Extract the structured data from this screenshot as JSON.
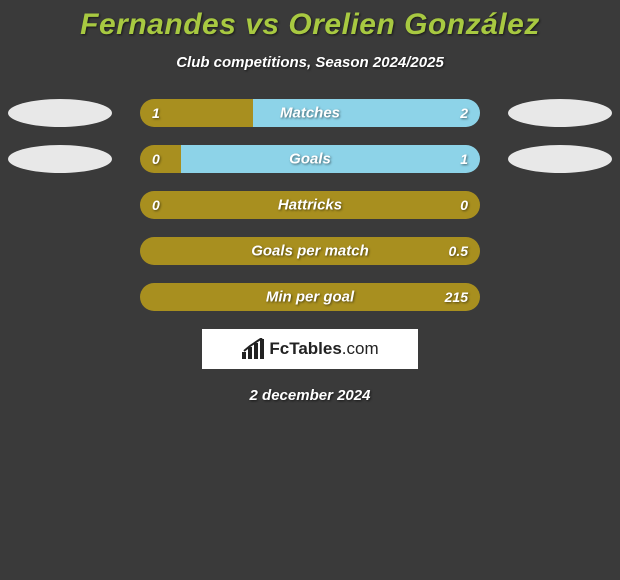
{
  "title": "Fernandes vs Orelien González",
  "subtitle": "Club competitions, Season 2024/2025",
  "date": "2 december 2024",
  "logo": {
    "strong": "FcTables",
    "light": ".com"
  },
  "colors": {
    "accent_green": "#a8c941",
    "bar_olive": "#a88f1f",
    "bar_skyblue": "#8dd3e8",
    "ellipse_bg": "#e8e8e8",
    "page_bg": "#3a3a3a",
    "text_white": "#ffffff"
  },
  "rows": [
    {
      "label": "Matches",
      "left_val": "1",
      "right_val": "2",
      "left_pct": 33.3,
      "right_pct": 66.7,
      "left_color": "#a88f1f",
      "right_color": "#8dd3e8",
      "show_ellipses": true
    },
    {
      "label": "Goals",
      "left_val": "0",
      "right_val": "1",
      "left_pct": 12,
      "right_pct": 88,
      "left_color": "#a88f1f",
      "right_color": "#8dd3e8",
      "show_ellipses": true
    },
    {
      "label": "Hattricks",
      "left_val": "0",
      "right_val": "0",
      "left_pct": 100,
      "right_pct": 0,
      "left_color": "#a88f1f",
      "right_color": "#8dd3e8",
      "show_ellipses": false
    },
    {
      "label": "Goals per match",
      "left_val": "",
      "right_val": "0.5",
      "left_pct": 100,
      "right_pct": 0,
      "left_color": "#a88f1f",
      "right_color": "#8dd3e8",
      "show_ellipses": false
    },
    {
      "label": "Min per goal",
      "left_val": "",
      "right_val": "215",
      "left_pct": 100,
      "right_pct": 0,
      "left_color": "#a88f1f",
      "right_color": "#8dd3e8",
      "show_ellipses": false
    }
  ]
}
